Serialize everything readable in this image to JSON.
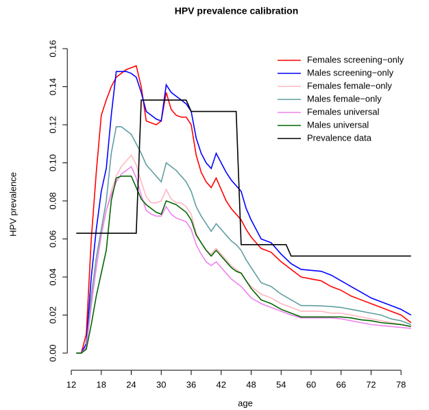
{
  "chart_data": {
    "type": "line",
    "title": "HPV prevalence calibration",
    "xlabel": "age",
    "ylabel": "HPV prevalence",
    "xlim": [
      11.2,
      82.5
    ],
    "ylim": [
      -0.009,
      0.165
    ],
    "xticks": [
      12,
      18,
      24,
      30,
      36,
      42,
      48,
      54,
      60,
      66,
      72,
      78
    ],
    "yticks": [
      {
        "value": 0,
        "label": "0.00"
      },
      {
        "value": 0.02,
        "label": "0.02"
      },
      {
        "value": 0.04,
        "label": "0.04"
      },
      {
        "value": 0.06,
        "label": "0.06"
      },
      {
        "value": 0.08,
        "label": "0.08"
      },
      {
        "value": 0.1,
        "label": "0.10"
      },
      {
        "value": 0.12,
        "label": "0.12"
      },
      {
        "value": 0.14,
        "label": "0.14"
      },
      {
        "value": 0.16,
        "label": "0.16"
      }
    ],
    "grid": false,
    "legend": "top-right",
    "x": [
      13,
      14,
      15,
      16,
      17,
      18,
      19,
      20,
      21,
      22,
      23,
      24,
      25,
      26,
      27,
      28,
      29,
      30,
      31,
      32,
      33,
      34,
      35,
      36,
      37,
      38,
      39,
      40,
      41,
      42,
      43,
      44,
      45,
      46,
      47,
      48,
      50,
      52,
      54,
      56,
      58,
      60,
      62,
      64,
      66,
      68,
      70,
      72,
      74,
      76,
      78,
      80
    ],
    "series": [
      {
        "name": "Females screening−only",
        "color": "#ff0000",
        "values": [
          0,
          0,
          0.01,
          0.06,
          0.095,
          0.125,
          0.133,
          0.14,
          0.145,
          0.147,
          0.149,
          0.15,
          0.151,
          0.14,
          0.122,
          0.121,
          0.12,
          0.122,
          0.137,
          0.128,
          0.125,
          0.124,
          0.124,
          0.12,
          0.104,
          0.095,
          0.09,
          0.087,
          0.092,
          0.086,
          0.08,
          0.076,
          0.073,
          0.07,
          0.065,
          0.061,
          0.055,
          0.053,
          0.048,
          0.044,
          0.04,
          0.039,
          0.038,
          0.035,
          0.033,
          0.03,
          0.028,
          0.026,
          0.024,
          0.022,
          0.02,
          0.016
        ]
      },
      {
        "name": "Males screening−only",
        "color": "#0000ff",
        "values": [
          0,
          0,
          0.005,
          0.04,
          0.065,
          0.085,
          0.097,
          0.125,
          0.148,
          0.148,
          0.148,
          0.147,
          0.145,
          0.137,
          0.127,
          0.125,
          0.123,
          0.122,
          0.141,
          0.137,
          0.135,
          0.133,
          0.131,
          0.127,
          0.113,
          0.105,
          0.1,
          0.097,
          0.105,
          0.1,
          0.095,
          0.091,
          0.088,
          0.085,
          0.076,
          0.07,
          0.06,
          0.058,
          0.052,
          0.047,
          0.044,
          0.0435,
          0.043,
          0.041,
          0.038,
          0.035,
          0.032,
          0.029,
          0.027,
          0.025,
          0.023,
          0.02
        ]
      },
      {
        "name": "Females female−only",
        "color": "#ffb6c1",
        "values": [
          0,
          0,
          0.003,
          0.025,
          0.045,
          0.062,
          0.075,
          0.085,
          0.093,
          0.098,
          0.101,
          0.104,
          0.099,
          0.09,
          0.082,
          0.079,
          0.079,
          0.08,
          0.086,
          0.081,
          0.079,
          0.079,
          0.077,
          0.073,
          0.063,
          0.058,
          0.054,
          0.052,
          0.055,
          0.052,
          0.049,
          0.046,
          0.044,
          0.042,
          0.038,
          0.035,
          0.031,
          0.029,
          0.026,
          0.024,
          0.022,
          0.022,
          0.022,
          0.021,
          0.021,
          0.02,
          0.019,
          0.018,
          0.017,
          0.016,
          0.015,
          0.014
        ]
      },
      {
        "name": "Males female−only",
        "color": "#5f9ea0",
        "values": [
          0,
          0,
          0.003,
          0.03,
          0.05,
          0.065,
          0.08,
          0.105,
          0.119,
          0.119,
          0.117,
          0.115,
          0.11,
          0.105,
          0.099,
          0.096,
          0.093,
          0.09,
          0.1,
          0.098,
          0.096,
          0.093,
          0.09,
          0.085,
          0.077,
          0.072,
          0.068,
          0.064,
          0.068,
          0.065,
          0.062,
          0.059,
          0.057,
          0.054,
          0.049,
          0.045,
          0.037,
          0.035,
          0.031,
          0.028,
          0.025,
          0.025,
          0.0248,
          0.0245,
          0.024,
          0.023,
          0.022,
          0.021,
          0.02,
          0.018,
          0.017,
          0.015
        ]
      },
      {
        "name": "Females universal",
        "color": "#ee82ee",
        "values": [
          0,
          0,
          0.003,
          0.025,
          0.045,
          0.062,
          0.075,
          0.083,
          0.09,
          0.094,
          0.096,
          0.098,
          0.092,
          0.083,
          0.075,
          0.073,
          0.072,
          0.072,
          0.077,
          0.073,
          0.071,
          0.07,
          0.069,
          0.065,
          0.057,
          0.052,
          0.048,
          0.046,
          0.048,
          0.045,
          0.042,
          0.039,
          0.037,
          0.035,
          0.032,
          0.029,
          0.026,
          0.024,
          0.022,
          0.02,
          0.0185,
          0.0185,
          0.0185,
          0.0185,
          0.018,
          0.017,
          0.016,
          0.015,
          0.0145,
          0.014,
          0.0135,
          0.013
        ]
      },
      {
        "name": "Males universal",
        "color": "#006400",
        "values": [
          0,
          0,
          0.002,
          0.015,
          0.03,
          0.042,
          0.054,
          0.08,
          0.092,
          0.093,
          0.093,
          0.093,
          0.087,
          0.081,
          0.078,
          0.076,
          0.074,
          0.073,
          0.08,
          0.079,
          0.078,
          0.076,
          0.074,
          0.07,
          0.062,
          0.058,
          0.054,
          0.051,
          0.054,
          0.051,
          0.048,
          0.045,
          0.043,
          0.042,
          0.038,
          0.034,
          0.028,
          0.026,
          0.023,
          0.021,
          0.019,
          0.019,
          0.019,
          0.019,
          0.019,
          0.0185,
          0.0175,
          0.017,
          0.016,
          0.0155,
          0.015,
          0.014
        ]
      },
      {
        "name": "Prevalence data",
        "color": "#000000",
        "x": [
          13,
          25,
          26,
          35,
          36,
          45,
          46,
          55,
          56,
          80
        ],
        "values": [
          0.063,
          0.063,
          0.133,
          0.133,
          0.127,
          0.127,
          0.057,
          0.057,
          0.051,
          0.051
        ]
      }
    ]
  }
}
